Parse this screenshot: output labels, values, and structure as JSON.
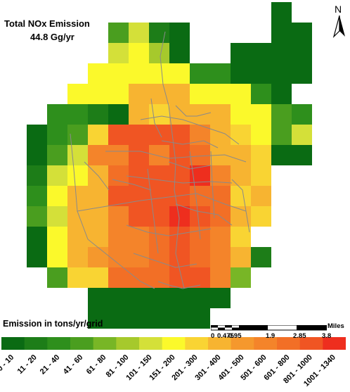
{
  "title": {
    "line1": "Total NOx Emission",
    "line2": "44.8 Gg/yr"
  },
  "north_label": "N",
  "legend": {
    "title": "Emission in tons/yr/grid",
    "classes": [
      {
        "label": "0 - 10",
        "color": "#0a6b13"
      },
      {
        "label": "11 - 20",
        "color": "#1d7d18"
      },
      {
        "label": "21 - 40",
        "color": "#2e8f1c"
      },
      {
        "label": "41 - 60",
        "color": "#4a9e1f"
      },
      {
        "label": "61 - 80",
        "color": "#78b626"
      },
      {
        "label": "81 - 100",
        "color": "#a6c92c"
      },
      {
        "label": "101 - 150",
        "color": "#d4e039"
      },
      {
        "label": "151 - 200",
        "color": "#fbf92b"
      },
      {
        "label": "201 - 300",
        "color": "#f9d433"
      },
      {
        "label": "301 - 400",
        "color": "#f7b431"
      },
      {
        "label": "401 - 500",
        "color": "#f5982d"
      },
      {
        "label": "501 - 600",
        "color": "#f4842a"
      },
      {
        "label": "601 - 800",
        "color": "#f26f26"
      },
      {
        "label": "801 - 1000",
        "color": "#f05523"
      },
      {
        "label": "1001 - 1340",
        "color": "#ee2e1e"
      }
    ]
  },
  "scale_bar": {
    "unit": "Miles",
    "ticks": [
      "0",
      "0.475",
      "0.95",
      "1.9",
      "2.85",
      "3.8"
    ]
  },
  "grid": {
    "cols": 13,
    "rows": 16,
    "class_index_rows": [
      "............0",
      ".....2630..00",
      "....36530.000",
      "....777721000",
      "....87897320.",
      "..2.888897723",
      ".0210.8999716",
      ".0..4",
      "00641",
      "..."
    ]
  },
  "roads_color": "#8a8a8a"
}
